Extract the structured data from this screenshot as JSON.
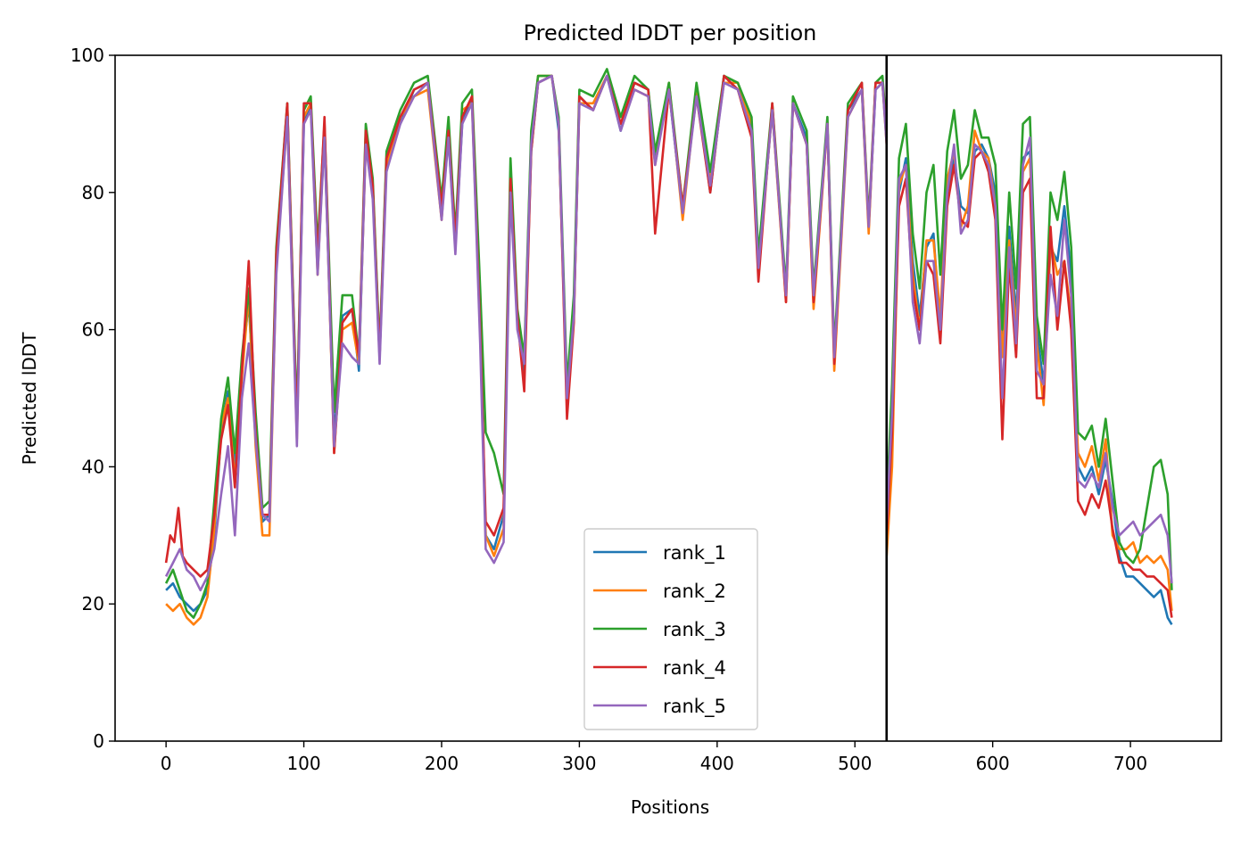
{
  "chart_data": {
    "type": "line",
    "title": "Predicted lDDT per position",
    "xlabel": "Positions",
    "ylabel": "Predicted lDDT",
    "xlim": [
      -37,
      766
    ],
    "ylim": [
      0,
      100
    ],
    "xticks": [
      0,
      100,
      200,
      300,
      400,
      500,
      600,
      700
    ],
    "yticks": [
      0,
      20,
      40,
      60,
      80,
      100
    ],
    "vline_x": 523,
    "legend_position": "lower-center",
    "grid": false,
    "series": [
      {
        "name": "rank_1",
        "color": "#1f77b4",
        "x": [
          0,
          5,
          10,
          15,
          20,
          25,
          30,
          35,
          40,
          45,
          50,
          55,
          60,
          65,
          70,
          75,
          80,
          88,
          95,
          100,
          105,
          110,
          115,
          122,
          128,
          135,
          140,
          145,
          150,
          155,
          160,
          170,
          180,
          190,
          200,
          205,
          210,
          215,
          222,
          228,
          232,
          238,
          245,
          250,
          255,
          260,
          265,
          270,
          280,
          285,
          291,
          296,
          300,
          310,
          320,
          330,
          340,
          350,
          355,
          365,
          375,
          385,
          395,
          405,
          415,
          425,
          430,
          440,
          450,
          455,
          465,
          470,
          480,
          485,
          495,
          505,
          510,
          515,
          520,
          523
        ],
        "y": [
          22,
          23,
          21,
          20,
          19,
          20,
          22,
          30,
          45,
          51,
          40,
          55,
          64,
          46,
          32,
          33,
          70,
          92,
          46,
          90,
          93,
          70,
          88,
          44,
          62,
          63,
          54,
          88,
          80,
          56,
          85,
          90,
          95,
          96,
          77,
          88,
          72,
          90,
          94,
          62,
          30,
          28,
          33,
          80,
          62,
          53,
          86,
          96,
          97,
          89,
          50,
          63,
          94,
          92,
          97,
          89,
          96,
          95,
          85,
          95,
          77,
          95,
          80,
          97,
          95,
          89,
          70,
          92,
          65,
          93,
          88,
          65,
          90,
          56,
          92,
          95,
          75,
          95,
          96,
          88
        ]
      },
      {
        "name": "rank_2",
        "color": "#ff7f0e",
        "x": [
          0,
          5,
          10,
          15,
          20,
          25,
          30,
          35,
          40,
          45,
          50,
          55,
          60,
          65,
          70,
          75,
          80,
          88,
          95,
          100,
          105,
          110,
          115,
          122,
          128,
          135,
          140,
          145,
          150,
          155,
          160,
          170,
          180,
          190,
          200,
          205,
          210,
          215,
          222,
          228,
          232,
          238,
          245,
          250,
          255,
          260,
          265,
          270,
          280,
          285,
          291,
          296,
          300,
          310,
          320,
          330,
          340,
          350,
          355,
          365,
          375,
          385,
          395,
          405,
          415,
          425,
          430,
          440,
          450,
          455,
          465,
          470,
          480,
          485,
          495,
          505,
          510,
          515,
          520,
          523
        ],
        "y": [
          20,
          19,
          20,
          18,
          17,
          18,
          21,
          31,
          46,
          50,
          38,
          53,
          65,
          43,
          30,
          30,
          69,
          91,
          44,
          91,
          93,
          68,
          89,
          42,
          60,
          61,
          55,
          87,
          81,
          57,
          84,
          91,
          94,
          95,
          76,
          90,
          73,
          92,
          93,
          60,
          30,
          27,
          31,
          83,
          61,
          55,
          88,
          97,
          97,
          90,
          49,
          62,
          93,
          93,
          97,
          90,
          95,
          94,
          84,
          96,
          76,
          95,
          82,
          96,
          96,
          90,
          69,
          92,
          64,
          93,
          87,
          63,
          90,
          54,
          91,
          95,
          74,
          96,
          96,
          87
        ]
      },
      {
        "name": "rank_3",
        "color": "#2ca02c",
        "x": [
          0,
          5,
          10,
          15,
          20,
          25,
          30,
          35,
          40,
          45,
          50,
          55,
          60,
          65,
          70,
          75,
          80,
          88,
          95,
          100,
          105,
          110,
          115,
          122,
          128,
          135,
          140,
          145,
          150,
          155,
          160,
          170,
          180,
          190,
          200,
          205,
          210,
          215,
          222,
          228,
          232,
          238,
          245,
          250,
          255,
          260,
          265,
          270,
          280,
          285,
          291,
          296,
          300,
          310,
          320,
          330,
          340,
          350,
          355,
          365,
          375,
          385,
          395,
          405,
          415,
          425,
          430,
          440,
          450,
          455,
          465,
          470,
          480,
          485,
          495,
          505,
          510,
          515,
          520,
          523
        ],
        "y": [
          23,
          25,
          22,
          19,
          18,
          20,
          23,
          35,
          47,
          53,
          42,
          56,
          66,
          48,
          34,
          35,
          72,
          93,
          47,
          92,
          94,
          72,
          90,
          48,
          65,
          65,
          56,
          90,
          82,
          57,
          86,
          92,
          96,
          97,
          79,
          91,
          74,
          93,
          95,
          66,
          45,
          42,
          36,
          85,
          63,
          56,
          89,
          97,
          97,
          91,
          52,
          65,
          95,
          94,
          98,
          91,
          97,
          95,
          86,
          96,
          78,
          96,
          83,
          97,
          96,
          91,
          71,
          93,
          66,
          94,
          89,
          66,
          91,
          57,
          93,
          96,
          76,
          96,
          97,
          89
        ]
      },
      {
        "name": "rank_4",
        "color": "#d62728",
        "x": [
          0,
          3,
          6,
          9,
          12,
          15,
          20,
          25,
          30,
          35,
          40,
          45,
          50,
          55,
          60,
          65,
          70,
          75,
          80,
          88,
          95,
          100,
          105,
          110,
          115,
          122,
          128,
          135,
          140,
          145,
          150,
          155,
          160,
          170,
          180,
          190,
          200,
          205,
          210,
          215,
          222,
          228,
          232,
          238,
          245,
          250,
          255,
          260,
          265,
          270,
          280,
          285,
          291,
          296,
          300,
          310,
          320,
          330,
          340,
          350,
          355,
          365,
          375,
          385,
          395,
          405,
          415,
          425,
          430,
          440,
          450,
          455,
          465,
          470,
          480,
          485,
          495,
          505,
          510,
          515,
          520,
          523
        ],
        "y": [
          26,
          30,
          29,
          34,
          27,
          26,
          25,
          24,
          25,
          33,
          44,
          49,
          37,
          54,
          70,
          45,
          33,
          33,
          71,
          93,
          45,
          93,
          93,
          70,
          91,
          42,
          61,
          63,
          56,
          89,
          81,
          56,
          85,
          91,
          95,
          96,
          78,
          89,
          73,
          91,
          94,
          60,
          32,
          30,
          34,
          82,
          62,
          51,
          86,
          96,
          97,
          90,
          47,
          61,
          94,
          92,
          97,
          90,
          96,
          95,
          74,
          95,
          78,
          94,
          80,
          97,
          95,
          88,
          67,
          93,
          64,
          93,
          87,
          64,
          90,
          55,
          92,
          96,
          75,
          96,
          96,
          88
        ]
      },
      {
        "name": "rank_5",
        "color": "#9467bd",
        "x": [
          0,
          5,
          10,
          15,
          20,
          25,
          30,
          35,
          40,
          45,
          50,
          55,
          60,
          65,
          70,
          75,
          80,
          88,
          95,
          100,
          105,
          110,
          115,
          122,
          128,
          135,
          140,
          145,
          150,
          155,
          160,
          170,
          180,
          190,
          200,
          205,
          210,
          215,
          222,
          228,
          232,
          238,
          245,
          250,
          255,
          260,
          265,
          270,
          280,
          285,
          291,
          296,
          300,
          310,
          320,
          330,
          340,
          350,
          355,
          365,
          375,
          385,
          395,
          405,
          415,
          425,
          430,
          440,
          450,
          455,
          465,
          470,
          480,
          485,
          495,
          505,
          510,
          515,
          520,
          523
        ],
        "y": [
          24,
          26,
          28,
          25,
          24,
          22,
          24,
          28,
          36,
          43,
          30,
          50,
          58,
          44,
          33,
          32,
          68,
          91,
          43,
          90,
          92,
          68,
          88,
          43,
          58,
          56,
          55,
          87,
          79,
          55,
          83,
          90,
          94,
          96,
          76,
          88,
          71,
          90,
          93,
          58,
          28,
          26,
          29,
          80,
          60,
          55,
          87,
          96,
          97,
          90,
          50,
          62,
          93,
          92,
          97,
          89,
          95,
          94,
          84,
          95,
          77,
          94,
          81,
          96,
          95,
          89,
          69,
          92,
          65,
          93,
          87,
          65,
          90,
          56,
          91,
          95,
          75,
          95,
          96,
          87
        ]
      },
      {
        "name": "rank_1",
        "color": "#1f77b4",
        "x": [
          523,
          527,
          532,
          537,
          542,
          547,
          552,
          557,
          562,
          567,
          572,
          577,
          582,
          587,
          592,
          597,
          602,
          607,
          612,
          617,
          622,
          627,
          632,
          637,
          642,
          647,
          652,
          657,
          662,
          667,
          672,
          677,
          682,
          687,
          692,
          697,
          702,
          707,
          712,
          717,
          722,
          727,
          730
        ],
        "y": [
          33,
          50,
          80,
          85,
          70,
          62,
          72,
          74,
          60,
          80,
          85,
          78,
          77,
          86,
          87,
          85,
          80,
          58,
          75,
          62,
          85,
          86,
          60,
          52,
          72,
          70,
          78,
          68,
          40,
          38,
          40,
          36,
          41,
          35,
          27,
          24,
          24,
          23,
          22,
          21,
          22,
          18,
          17
        ]
      },
      {
        "name": "rank_2",
        "color": "#ff7f0e",
        "x": [
          523,
          527,
          532,
          537,
          542,
          547,
          552,
          557,
          562,
          567,
          572,
          577,
          582,
          587,
          592,
          597,
          602,
          607,
          612,
          617,
          622,
          627,
          632,
          637,
          642,
          647,
          652,
          657,
          662,
          667,
          672,
          677,
          682,
          687,
          692,
          697,
          702,
          707,
          712,
          717,
          722,
          727,
          730
        ],
        "y": [
          27,
          40,
          81,
          84,
          68,
          60,
          73,
          73,
          62,
          82,
          86,
          75,
          78,
          89,
          86,
          85,
          78,
          56,
          73,
          60,
          83,
          85,
          58,
          49,
          73,
          68,
          70,
          62,
          42,
          40,
          43,
          38,
          44,
          30,
          28,
          28,
          29,
          26,
          27,
          26,
          27,
          25,
          19
        ]
      },
      {
        "name": "rank_3",
        "color": "#2ca02c",
        "x": [
          523,
          527,
          532,
          537,
          542,
          547,
          552,
          557,
          562,
          567,
          572,
          577,
          582,
          587,
          592,
          597,
          602,
          607,
          612,
          617,
          622,
          627,
          632,
          637,
          642,
          647,
          652,
          657,
          662,
          667,
          672,
          677,
          682,
          687,
          692,
          697,
          702,
          707,
          712,
          717,
          722,
          727,
          730
        ],
        "y": [
          34,
          52,
          85,
          90,
          74,
          66,
          80,
          84,
          68,
          86,
          92,
          82,
          84,
          92,
          88,
          88,
          84,
          60,
          80,
          66,
          90,
          91,
          62,
          55,
          80,
          76,
          83,
          72,
          45,
          44,
          46,
          40,
          47,
          38,
          29,
          27,
          26,
          28,
          34,
          40,
          41,
          36,
          22
        ]
      },
      {
        "name": "rank_4",
        "color": "#d62728",
        "x": [
          523,
          527,
          532,
          537,
          542,
          547,
          552,
          557,
          562,
          567,
          572,
          577,
          582,
          587,
          592,
          597,
          602,
          607,
          612,
          617,
          622,
          627,
          632,
          637,
          642,
          647,
          652,
          657,
          662,
          667,
          672,
          677,
          682,
          687,
          692,
          697,
          702,
          707,
          712,
          717,
          722,
          727,
          730
        ],
        "y": [
          30,
          45,
          78,
          82,
          66,
          60,
          70,
          68,
          58,
          78,
          84,
          76,
          75,
          85,
          86,
          83,
          76,
          44,
          70,
          56,
          80,
          82,
          50,
          50,
          75,
          60,
          70,
          60,
          35,
          33,
          36,
          34,
          38,
          31,
          26,
          26,
          25,
          25,
          24,
          24,
          23,
          22,
          18
        ]
      },
      {
        "name": "rank_5",
        "color": "#9467bd",
        "x": [
          523,
          527,
          532,
          537,
          542,
          547,
          552,
          557,
          562,
          567,
          572,
          577,
          582,
          587,
          592,
          597,
          602,
          607,
          612,
          617,
          622,
          627,
          632,
          637,
          642,
          647,
          652,
          657,
          662,
          667,
          672,
          677,
          682,
          687,
          692,
          697,
          702,
          707,
          712,
          717,
          722,
          727,
          730
        ],
        "y": [
          32,
          48,
          82,
          84,
          64,
          58,
          70,
          70,
          60,
          80,
          87,
          74,
          76,
          87,
          86,
          84,
          78,
          50,
          72,
          58,
          84,
          88,
          54,
          52,
          68,
          62,
          76,
          65,
          38,
          37,
          39,
          37,
          42,
          34,
          30,
          31,
          32,
          30,
          31,
          32,
          33,
          30,
          23
        ]
      }
    ],
    "legend": [
      "rank_1",
      "rank_2",
      "rank_3",
      "rank_4",
      "rank_5"
    ]
  }
}
